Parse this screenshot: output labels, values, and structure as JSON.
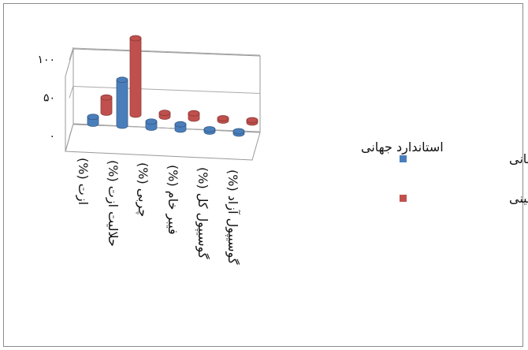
{
  "chart_data": {
    "type": "bar",
    "style": "3d-cylinder",
    "categories": [
      "ازت (%)",
      "حلالیت ازت (%)",
      "چربی (%)",
      "فیبر خام (%)",
      "گوسیپول کل (%)",
      "گوسیپول آزاد (%)"
    ],
    "series": [
      {
        "name": "استاندارد جهانی",
        "color": "#4a7ebb",
        "values": [
          9,
          60,
          8,
          7,
          2,
          1
        ]
      },
      {
        "name": "کنسانتره پروتئینی",
        "color": "#c0504d",
        "values": [
          20,
          100,
          5,
          7,
          1,
          1
        ]
      }
    ],
    "y_ticks": [
      "۰",
      "۵۰",
      "۱۰۰"
    ],
    "ylim": [
      0,
      100
    ],
    "depth_label": "استاندارد جهانی",
    "grid": true,
    "legend_position": "right"
  }
}
